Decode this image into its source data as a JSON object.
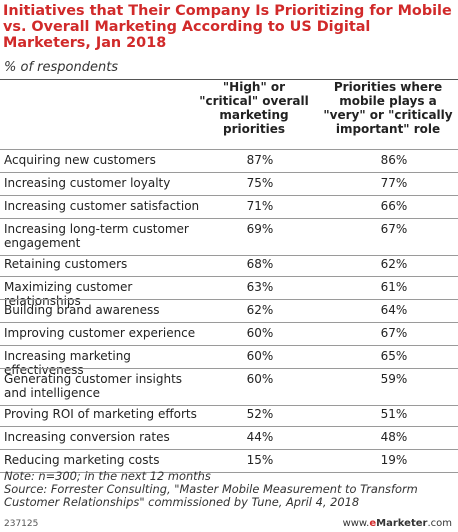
{
  "title": "Initiatives that Their Company Is Prioritizing for Mobile vs. Overall Marketing According to US Digital Marketers, Jan 2018",
  "subtitle": "% of respondents",
  "colors": {
    "title": "#d12a2a",
    "rule": "#9a9a9a",
    "brand_accent": "#d12a2a"
  },
  "chart_data": {
    "type": "table",
    "title": "Initiatives that Their Company Is Prioritizing for Mobile vs. Overall Marketing According to US Digital Marketers, Jan 2018",
    "subtitle": "% of respondents",
    "columns": [
      "\"High\" or \"critical\" overall marketing priorities",
      "Priorities where mobile plays a \"very\" or \"critically important\" role"
    ],
    "rows": [
      {
        "label": "Acquiring new customers",
        "values": [
          "87%",
          "86%"
        ]
      },
      {
        "label": "Increasing customer loyalty",
        "values": [
          "75%",
          "77%"
        ]
      },
      {
        "label": "Increasing customer satisfaction",
        "values": [
          "71%",
          "66%"
        ]
      },
      {
        "label": "Increasing long-term customer engagement",
        "values": [
          "69%",
          "67%"
        ]
      },
      {
        "label": "Retaining customers",
        "values": [
          "68%",
          "62%"
        ]
      },
      {
        "label": "Maximizing customer relationships",
        "values": [
          "63%",
          "61%"
        ]
      },
      {
        "label": "Building brand awareness",
        "values": [
          "62%",
          "64%"
        ]
      },
      {
        "label": "Improving customer experience",
        "values": [
          "60%",
          "67%"
        ]
      },
      {
        "label": "Increasing marketing effectiveness",
        "values": [
          "60%",
          "65%"
        ]
      },
      {
        "label": "Generating customer insights and intelligence",
        "values": [
          "60%",
          "59%"
        ]
      },
      {
        "label": "Proving ROI of marketing efforts",
        "values": [
          "52%",
          "51%"
        ]
      },
      {
        "label": "Increasing conversion rates",
        "values": [
          "44%",
          "48%"
        ]
      },
      {
        "label": "Reducing marketing costs",
        "values": [
          "15%",
          "19%"
        ]
      }
    ]
  },
  "notes": {
    "note": "Note: n=300; in the next 12 months",
    "source": "Source: Forrester Consulting, \"Master Mobile Measurement to Transform Customer Relationships\" commissioned by Tune, April 4, 2018"
  },
  "footer": {
    "id": "237125",
    "brand_prefix": "www.",
    "brand_e": "e",
    "brand_name": "Marketer",
    "brand_suffix": ".com"
  }
}
